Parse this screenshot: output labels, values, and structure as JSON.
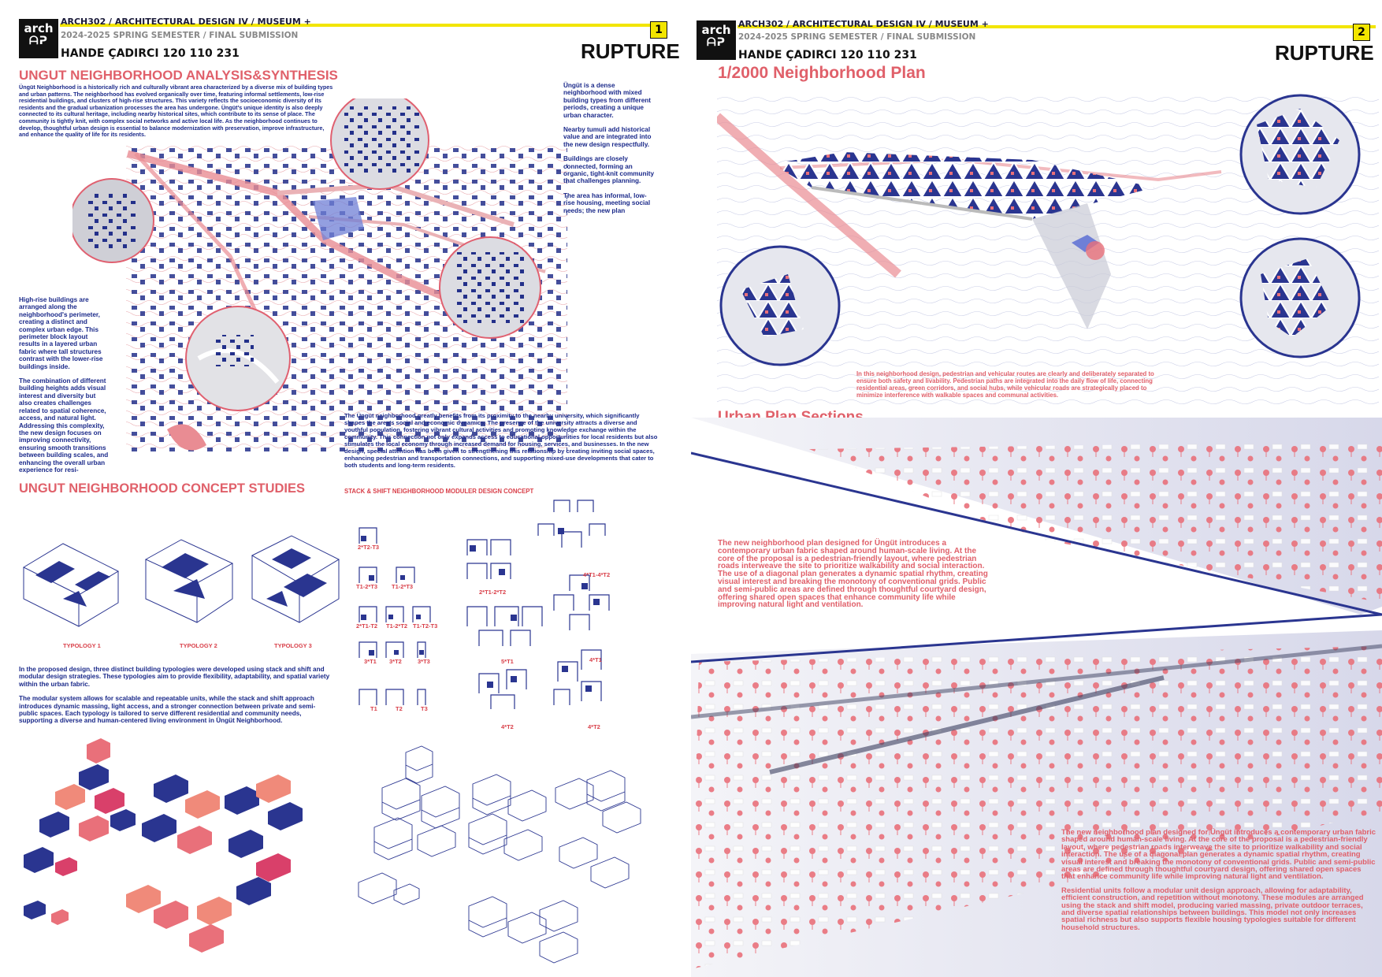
{
  "sheet1": {
    "header": {
      "logo_line1": "arch",
      "logo_line2": "ᗩᕈ",
      "course": "ARCH302 / ARCHITECTURAL DESIGN IV / MUSEUM +",
      "semester": "2024-2025 SPRING SEMESTER / FINAL SUBMISSION",
      "student": "HANDE ÇADIRCI 120 110 231",
      "page_number": "1",
      "project": "RUPTURE"
    },
    "analysis": {
      "title": "UNGUT NEIGHBORHOOD ANALYSIS&SYNTHESIS",
      "intro": "Üngüt Neighborhood is a historically rich and culturally vibrant area characterized by a diverse mix of building types and urban patterns. The neighborhood has evolved organically over time, featuring informal settlements, low-rise residential buildings, and clusters of high-rise structures. This variety reflects the socioeconomic diversity of its residents and the gradual urbanization processes the area has undergone. Üngüt's unique identity is also deeply connected to its cultural heritage, including nearby historical sites, which contribute to its sense of place. The community is tightly knit, with complex social networks and active local life. As the neighborhood continues to develop, thoughtful urban design is essential to balance modernization with preservation, improve infrastructure, and enhance the quality of life for its residents.",
      "right_notes": [
        "Üngüt is a dense neighborhood with mixed building types from different periods, creating a unique urban character.",
        "Nearby tumuli add historical value and are integrated into the new design respectfully.",
        "Buildings are closely connected, forming an organic, tight-knit community that challenges planning.",
        "The area has informal, low-rise housing, meeting social needs; the new plan"
      ],
      "left_notes": [
        "High-rise buildings are arranged along the neighborhood's perimeter, creating a distinct and complex urban edge. This perimeter block layout results in a layered urban fabric where tall structures contrast with the lower-rise buildings inside.",
        "The combination of different building heights adds visual interest and diversity but also creates challenges related to spatial coherence, access, and natural light. Addressing this complexity, the new design focuses on improving connectivity, ensuring smooth transitions between building scales, and enhancing the overall urban experience for resi-"
      ],
      "university_note": "The Üngüt neighborhood greatly benefits from its proximity to the nearby university, which significantly shapes the area's social and economic dynamics. The presence of the university attracts a diverse and youthful population, fostering vibrant cultural activities and promoting knowledge exchange within the community. This connection not only expands access to educational opportunities for local residents but also stimulates the local economy through increased demand for housing, services, and businesses. In the new design, special attention has been given to strengthening this relationship by creating inviting social spaces, enhancing pedestrian and transportation connections, and supporting mixed-use developments that cater to both students and long-term residents."
    },
    "concept": {
      "title": "UNGUT NEIGHBORHOOD CONCEPT STUDIES",
      "subtitle": "STACK & SHIFT NEIGHBORHOOD MODULER DESIGN CONCEPT",
      "typologies": [
        "TYPOLOGY 1",
        "TYPOLOGY 2",
        "TYPOLOGY 3"
      ],
      "paragraph1": "In the proposed design, three distinct building typologies were developed using stack and shift and modular design strategies. These typologies aim to provide flexibility, adaptability, and spatial variety within the urban fabric.",
      "paragraph2": "The modular system allows for scalable and repeatable units, while the stack and shift approach introduces dynamic massing, light access, and a stronger connection between private and semi-public spaces. Each typology is tailored to serve different residential and community needs, supporting a diverse and human-centered living environment in Üngüt Neighborhood.",
      "module_labels": {
        "col1": [
          "2*T2-T3",
          "T1-2*T3",
          "T1-2*T3",
          "2*T1-T2",
          "T1-2*T2",
          "T1-T2-T3",
          "3*T1",
          "3*T2",
          "3*T3",
          "T1",
          "T2",
          "T3"
        ],
        "col2": [
          "2*T1-2*T2",
          "5*T1",
          "4*T2"
        ],
        "col3": [
          "4*T1-4*T2",
          "4*T1",
          "4*T2"
        ]
      }
    }
  },
  "sheet2": {
    "header": {
      "logo_line1": "arch",
      "logo_line2": "ᗩᕈ",
      "course": "ARCH302 / ARCHITECTURAL DESIGN IV / MUSEUM +",
      "semester": "2024-2025 SPRING SEMESTER / FINAL SUBMISSION",
      "student": "HANDE ÇADIRCI 120 110 231",
      "page_number": "2",
      "project": "RUPTURE"
    },
    "plan": {
      "title": "1/2000 Neighborhood Plan",
      "note": "In this neighborhood design, pedestrian and vehicular routes are clearly and deliberately separated to ensure both safety and livability. Pedestrian paths are integrated into the daily flow of life, connecting residential areas, green corridors, and social hubs, while vehicular roads are strategically placed to minimize interference with walkable spaces and communal activities."
    },
    "sections": {
      "title": "Urban Plan Sections",
      "text1": "The new neighborhood plan designed for Üngüt introduces a contemporary urban fabric shaped around human-scale living. At the core of the proposal is a pedestrian-friendly layout, where pedestrian roads interweave the site to prioritize walkability and social interaction. The use of a diagonal plan generates a dynamic spatial rhythm, creating visual interest and breaking the monotony of conventional grids. Public and semi-public areas are defined through thoughtful courtyard design, offering shared open spaces that enhance community life while improving natural light and ventilation.",
      "text2a": "The new neighborhood plan designed for Üngüt introduces a contemporary urban fabric shaped around human-scale living. At the core of the proposal is a pedestrian-friendly layout, where pedestrian roads interweave the site to prioritize walkability and social interaction. The use of a diagonal plan generates a dynamic spatial rhythm, creating visual interest and breaking the monotony of conventional grids. Public and semi-public areas are defined through thoughtful courtyard design, offering shared open spaces that enhance community life while improving natural light and ventilation.",
      "text2b": "Residential units follow a modular unit design approach, allowing for adaptability, efficient construction, and repetition without monotony. These modules are arranged using the stack and shift model, producing varied massing, private outdoor terraces, and diverse spatial relationships between buildings. This model not only increases spatial richness but also supports flexible housing typologies suitable for different household structures."
    }
  },
  "colors": {
    "accent_yellow": "#f2e500",
    "title_red": "#e0606a",
    "text_blue": "#1b2a8a",
    "plan_blue": "#2a3590"
  }
}
